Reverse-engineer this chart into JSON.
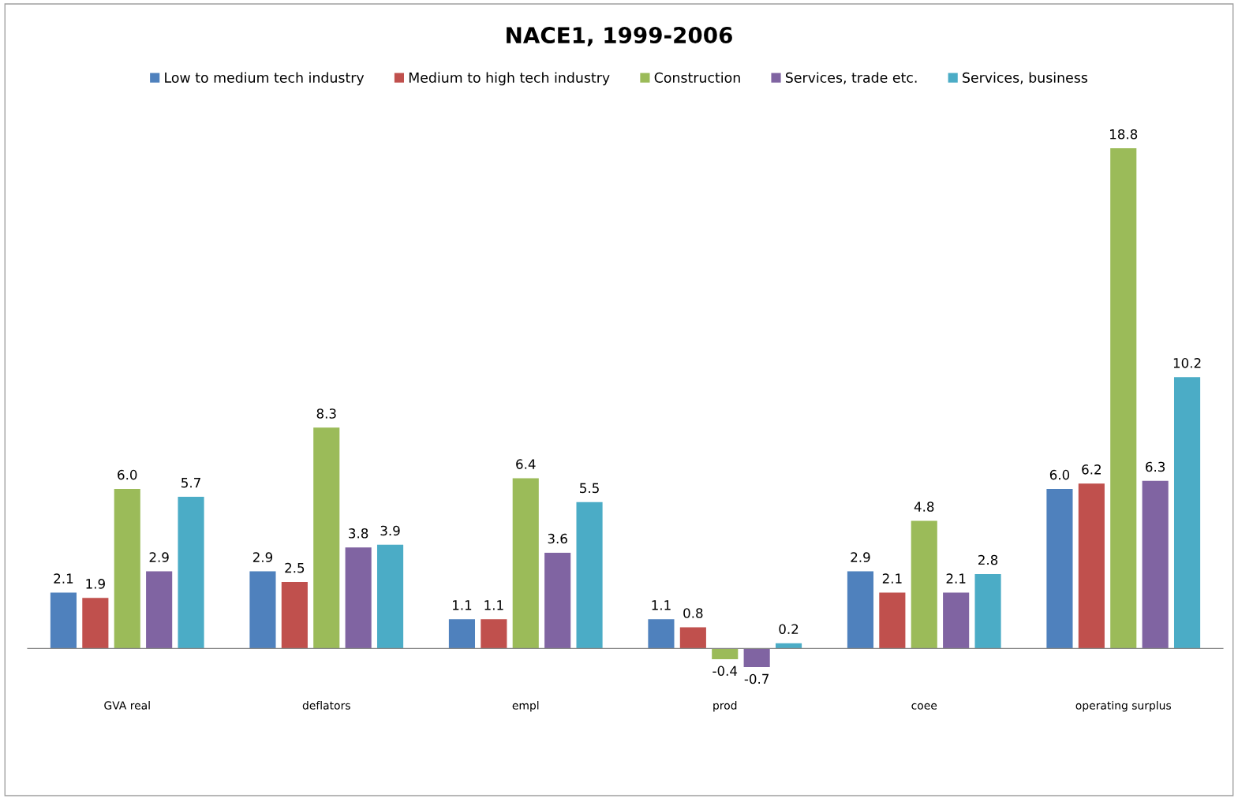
{
  "chart_data": {
    "type": "bar",
    "title": "NACE1, 1999-2006",
    "categories": [
      "GVA real",
      "deflators",
      "empl",
      "prod",
      "coee",
      "operating surplus"
    ],
    "series": [
      {
        "name": "Low to medium tech industry",
        "color": "#4f81bd",
        "values": [
          2.1,
          2.9,
          1.1,
          1.1,
          2.9,
          6.0
        ],
        "value_labels": [
          "2.1",
          "2.9",
          "1.1",
          "1.1",
          "2.9",
          "6.0"
        ]
      },
      {
        "name": "Medium to high tech industry",
        "color": "#c0504d",
        "values": [
          1.9,
          2.5,
          1.1,
          0.8,
          2.1,
          6.2
        ],
        "value_labels": [
          "1.9",
          "2.5",
          "1.1",
          "0.8",
          "2.1",
          "6.2"
        ]
      },
      {
        "name": "Construction",
        "color": "#9bbb59",
        "values": [
          6.0,
          8.3,
          6.4,
          -0.4,
          4.8,
          18.8
        ],
        "value_labels": [
          "6.0",
          "8.3",
          "6.4",
          "-0.4",
          "4.8",
          "18.8"
        ]
      },
      {
        "name": "Services, trade etc.",
        "color": "#8064a2",
        "values": [
          2.9,
          3.8,
          3.6,
          -0.7,
          2.1,
          6.3
        ],
        "value_labels": [
          "2.9",
          "3.8",
          "3.6",
          "-0.7",
          "2.1",
          "6.3"
        ]
      },
      {
        "name": "Services, business",
        "color": "#4bacc6",
        "values": [
          5.7,
          3.9,
          5.5,
          0.2,
          2.8,
          10.2
        ],
        "value_labels": [
          "5.7",
          "3.9",
          "5.5",
          "0.2",
          "2.8",
          "10.2"
        ]
      }
    ],
    "legend": "top"
  }
}
